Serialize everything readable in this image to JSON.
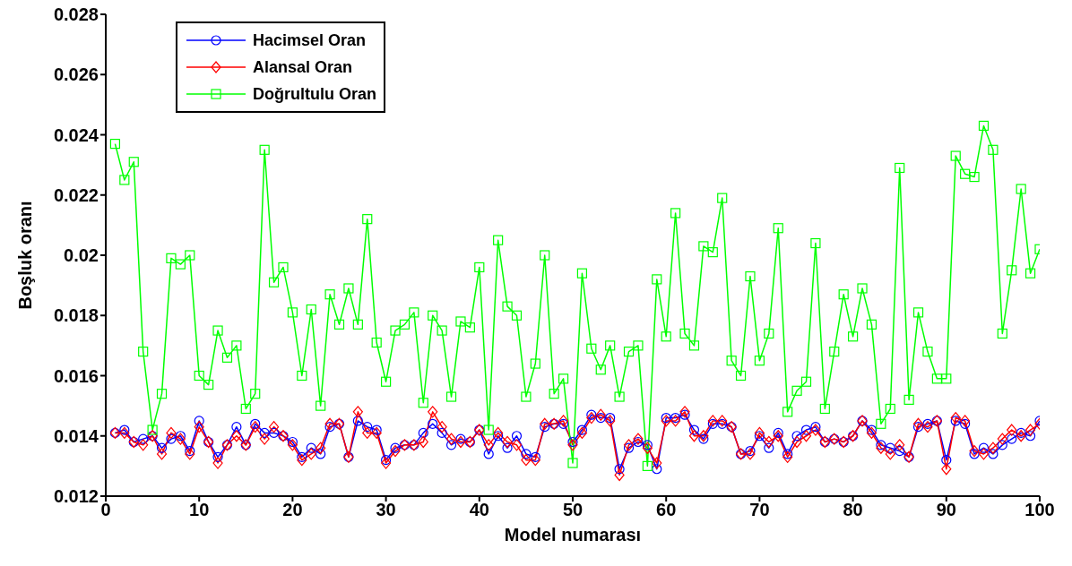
{
  "chart_data": {
    "type": "line",
    "xlabel": "Model numarası",
    "ylabel": "Boşluk oranı",
    "x": [
      1,
      2,
      3,
      4,
      5,
      6,
      7,
      8,
      9,
      10,
      11,
      12,
      13,
      14,
      15,
      16,
      17,
      18,
      19,
      20,
      21,
      22,
      23,
      24,
      25,
      26,
      27,
      28,
      29,
      30,
      31,
      32,
      33,
      34,
      35,
      36,
      37,
      38,
      39,
      40,
      41,
      42,
      43,
      44,
      45,
      46,
      47,
      48,
      49,
      50,
      51,
      52,
      53,
      54,
      55,
      56,
      57,
      58,
      59,
      60,
      61,
      62,
      63,
      64,
      65,
      66,
      67,
      68,
      69,
      70,
      71,
      72,
      73,
      74,
      75,
      76,
      77,
      78,
      79,
      80,
      81,
      82,
      83,
      84,
      85,
      86,
      87,
      88,
      89,
      90,
      91,
      92,
      93,
      94,
      95,
      96,
      97,
      98,
      99,
      100
    ],
    "series": [
      {
        "name": "Hacimsel Oran",
        "color": "#0000ff",
        "marker": "circle",
        "values": [
          0.0141,
          0.0142,
          0.0138,
          0.0139,
          0.014,
          0.0136,
          0.0139,
          0.014,
          0.0135,
          0.0145,
          0.0138,
          0.0133,
          0.0137,
          0.0143,
          0.0137,
          0.0144,
          0.0141,
          0.0141,
          0.014,
          0.0138,
          0.0133,
          0.0136,
          0.0134,
          0.0143,
          0.0144,
          0.0133,
          0.0145,
          0.0143,
          0.0142,
          0.0132,
          0.0136,
          0.0137,
          0.0137,
          0.0141,
          0.0144,
          0.0141,
          0.0137,
          0.0139,
          0.0138,
          0.0142,
          0.0134,
          0.014,
          0.0136,
          0.014,
          0.0134,
          0.0133,
          0.0143,
          0.0144,
          0.0144,
          0.0138,
          0.0142,
          0.0147,
          0.0146,
          0.0146,
          0.0129,
          0.0136,
          0.0138,
          0.0137,
          0.0129,
          0.0146,
          0.0146,
          0.0147,
          0.0142,
          0.0139,
          0.0144,
          0.0144,
          0.0143,
          0.0134,
          0.0135,
          0.014,
          0.0136,
          0.0141,
          0.0134,
          0.014,
          0.0142,
          0.0143,
          0.0138,
          0.0139,
          0.0138,
          0.014,
          0.0145,
          0.0142,
          0.0137,
          0.0136,
          0.0135,
          0.0133,
          0.0143,
          0.0144,
          0.0145,
          0.0132,
          0.0145,
          0.0144,
          0.0134,
          0.0136,
          0.0134,
          0.0137,
          0.0139,
          0.0141,
          0.014,
          0.0145
        ]
      },
      {
        "name": "Alansal Oran",
        "color": "#ff0000",
        "marker": "diamond",
        "values": [
          0.0141,
          0.0141,
          0.0138,
          0.0137,
          0.014,
          0.0134,
          0.0141,
          0.0139,
          0.0134,
          0.0143,
          0.0138,
          0.0131,
          0.0137,
          0.014,
          0.0137,
          0.0143,
          0.0139,
          0.0143,
          0.014,
          0.0137,
          0.0132,
          0.0134,
          0.0136,
          0.0144,
          0.0144,
          0.0133,
          0.0148,
          0.0141,
          0.0141,
          0.0131,
          0.0135,
          0.0137,
          0.0137,
          0.0138,
          0.0148,
          0.0143,
          0.0139,
          0.0138,
          0.0138,
          0.0142,
          0.0137,
          0.0141,
          0.0138,
          0.0137,
          0.0132,
          0.0132,
          0.0144,
          0.0144,
          0.0145,
          0.0137,
          0.0141,
          0.0146,
          0.0147,
          0.0145,
          0.0127,
          0.0137,
          0.0139,
          0.0136,
          0.0131,
          0.0145,
          0.0145,
          0.0148,
          0.014,
          0.014,
          0.0145,
          0.0145,
          0.0143,
          0.0134,
          0.0134,
          0.0141,
          0.0138,
          0.014,
          0.0133,
          0.0138,
          0.014,
          0.0142,
          0.0138,
          0.0139,
          0.0138,
          0.014,
          0.0145,
          0.0141,
          0.0136,
          0.0134,
          0.0137,
          0.0133,
          0.0144,
          0.0143,
          0.0145,
          0.0129,
          0.0146,
          0.0145,
          0.0135,
          0.0134,
          0.0136,
          0.0139,
          0.0142,
          0.014,
          0.0142,
          0.0144
        ]
      },
      {
        "name": "Doğrultulu Oran",
        "color": "#00ff00",
        "marker": "square",
        "values": [
          0.0237,
          0.0225,
          0.0231,
          0.0168,
          0.0142,
          0.0154,
          0.0199,
          0.0197,
          0.02,
          0.016,
          0.0157,
          0.0175,
          0.0166,
          0.017,
          0.0149,
          0.0154,
          0.0235,
          0.0191,
          0.0196,
          0.0181,
          0.016,
          0.0182,
          0.015,
          0.0187,
          0.0177,
          0.0189,
          0.0177,
          0.0212,
          0.0171,
          0.0158,
          0.0175,
          0.0177,
          0.0181,
          0.0151,
          0.018,
          0.0175,
          0.0153,
          0.0178,
          0.0176,
          0.0196,
          0.0142,
          0.0205,
          0.0183,
          0.018,
          0.0153,
          0.0164,
          0.02,
          0.0154,
          0.0159,
          0.0131,
          0.0194,
          0.0169,
          0.0162,
          0.017,
          0.0153,
          0.0168,
          0.017,
          0.013,
          0.0192,
          0.0173,
          0.0214,
          0.0174,
          0.017,
          0.0203,
          0.0201,
          0.0219,
          0.0165,
          0.016,
          0.0193,
          0.0165,
          0.0174,
          0.0209,
          0.0148,
          0.0155,
          0.0158,
          0.0204,
          0.0149,
          0.0168,
          0.0187,
          0.0173,
          0.0189,
          0.0177,
          0.0144,
          0.0149,
          0.0229,
          0.0152,
          0.0181,
          0.0168,
          0.0159,
          0.0159,
          0.0233,
          0.0227,
          0.0226,
          0.0243,
          0.0235,
          0.0174,
          0.0195,
          0.0222,
          0.0194,
          0.0202
        ]
      }
    ],
    "xlim": [
      0,
      100
    ],
    "xticks": [
      0,
      10,
      20,
      30,
      40,
      50,
      60,
      70,
      80,
      90,
      100
    ],
    "ylim": [
      0.012,
      0.028
    ],
    "yticks": [
      0.012,
      0.014,
      0.016,
      0.018,
      0.02,
      0.022,
      0.024,
      0.026,
      0.028
    ],
    "legend": "top left",
    "grid": false
  }
}
